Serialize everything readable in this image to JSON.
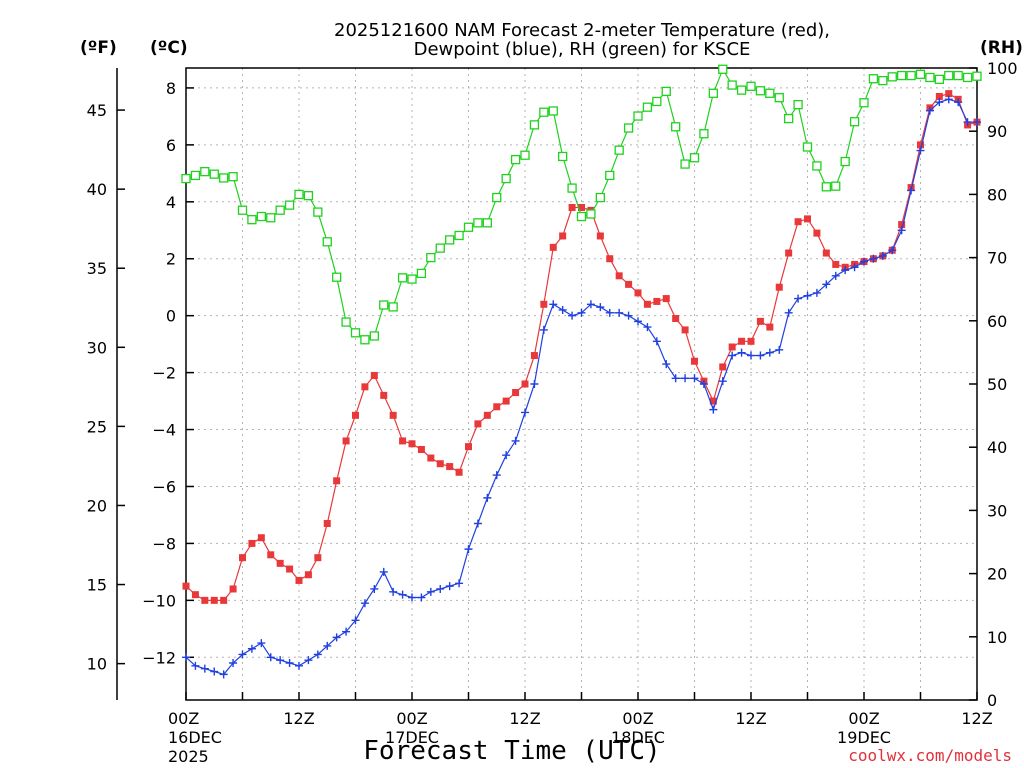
{
  "chart_data": {
    "type": "line",
    "title": [
      "2025121600 NAM Forecast 2-meter Temperature (red),",
      "Dewpoint (blue), RH (green) for KSCE"
    ],
    "xlabel": "Forecast Time (UTC)",
    "x_ticks": [
      {
        "hour": 0,
        "lines": [
          "00Z",
          "16DEC",
          "2025"
        ]
      },
      {
        "hour": 12,
        "lines": [
          "12Z"
        ]
      },
      {
        "hour": 24,
        "lines": [
          "00Z",
          "17DEC"
        ]
      },
      {
        "hour": 36,
        "lines": [
          "12Z"
        ]
      },
      {
        "hour": 48,
        "lines": [
          "00Z",
          "18DEC"
        ]
      },
      {
        "hour": 60,
        "lines": [
          "12Z"
        ]
      },
      {
        "hour": 72,
        "lines": [
          "00Z",
          "19DEC"
        ]
      },
      {
        "hour": 84,
        "lines": [
          "12Z"
        ]
      }
    ],
    "x_range": [
      0,
      84
    ],
    "left_axis_c": {
      "unit": "(ºC)",
      "range": [
        -13.5,
        8.7
      ],
      "ticks": [
        -12,
        -10,
        -8,
        -6,
        -4,
        -2,
        0,
        2,
        4,
        6,
        8
      ]
    },
    "left_axis_f": {
      "unit": "(ºF)",
      "ticks": [
        10,
        15,
        20,
        25,
        30,
        35,
        40,
        45
      ]
    },
    "right_axis_rh": {
      "unit": "(RH)",
      "range": [
        0,
        100
      ],
      "ticks": [
        0,
        10,
        20,
        30,
        40,
        50,
        60,
        70,
        80,
        90,
        100
      ]
    },
    "grid": true,
    "series": [
      {
        "name": "Temperature",
        "color": "#e8383a",
        "marker": "filled-square",
        "x": [
          0,
          1,
          2,
          3,
          4,
          5,
          6,
          7,
          8,
          9,
          10,
          11,
          12,
          13,
          14,
          15,
          16,
          17,
          18,
          19,
          20,
          21,
          22,
          23,
          24,
          25,
          26,
          27,
          28,
          29,
          30,
          31,
          32,
          33,
          34,
          35,
          36,
          37,
          38,
          39,
          40,
          41,
          42,
          43,
          44,
          45,
          46,
          47,
          48,
          49,
          50,
          51,
          52,
          53,
          54,
          55,
          56,
          57,
          58,
          59,
          60,
          61,
          62,
          63,
          64,
          65,
          66,
          67,
          68,
          69,
          70,
          71,
          72,
          73,
          74,
          75,
          76,
          77,
          78,
          79,
          80,
          81,
          82,
          83,
          84
        ],
        "values": [
          -9.5,
          -9.8,
          -10.0,
          -10.0,
          -10.0,
          -9.6,
          -8.5,
          -8.0,
          -7.8,
          -8.4,
          -8.7,
          -8.9,
          -9.3,
          -9.1,
          -8.5,
          -7.3,
          -5.8,
          -4.4,
          -3.5,
          -2.5,
          -2.1,
          -2.8,
          -3.5,
          -4.4,
          -4.5,
          -4.7,
          -5.0,
          -5.2,
          -5.3,
          -5.5,
          -4.6,
          -3.8,
          -3.5,
          -3.2,
          -3.0,
          -2.7,
          -2.4,
          -1.4,
          0.4,
          2.4,
          2.8,
          3.8,
          3.8,
          3.7,
          2.8,
          2.0,
          1.4,
          1.1,
          0.8,
          0.4,
          0.5,
          0.6,
          -0.1,
          -0.5,
          -1.6,
          -2.3,
          -3.0,
          -1.8,
          -1.1,
          -0.9,
          -0.9,
          -0.2,
          -0.4,
          1.0,
          2.2,
          3.3,
          3.4,
          2.9,
          2.2,
          1.8,
          1.7,
          1.8,
          1.9,
          2.0,
          2.1,
          2.3,
          3.2,
          4.5,
          6.0,
          7.3,
          7.7,
          7.8,
          7.6,
          6.7,
          6.8
        ]
      },
      {
        "name": "Dewpoint",
        "color": "#2040e0",
        "marker": "plus",
        "x": [
          0,
          1,
          2,
          3,
          4,
          5,
          6,
          7,
          8,
          9,
          10,
          11,
          12,
          13,
          14,
          15,
          16,
          17,
          18,
          19,
          20,
          21,
          22,
          23,
          24,
          25,
          26,
          27,
          28,
          29,
          30,
          31,
          32,
          33,
          34,
          35,
          36,
          37,
          38,
          39,
          40,
          41,
          42,
          43,
          44,
          45,
          46,
          47,
          48,
          49,
          50,
          51,
          52,
          53,
          54,
          55,
          56,
          57,
          58,
          59,
          60,
          61,
          62,
          63,
          64,
          65,
          66,
          67,
          68,
          69,
          70,
          71,
          72,
          73,
          74,
          75,
          76,
          77,
          78,
          79,
          80,
          81,
          82,
          83,
          84
        ],
        "values": [
          -12.0,
          -12.3,
          -12.4,
          -12.5,
          -12.6,
          -12.2,
          -11.9,
          -11.7,
          -11.5,
          -12.0,
          -12.1,
          -12.2,
          -12.3,
          -12.1,
          -11.9,
          -11.6,
          -11.3,
          -11.1,
          -10.7,
          -10.1,
          -9.6,
          -9.0,
          -9.7,
          -9.8,
          -9.9,
          -9.9,
          -9.7,
          -9.6,
          -9.5,
          -9.4,
          -8.2,
          -7.3,
          -6.4,
          -5.6,
          -4.9,
          -4.4,
          -3.4,
          -2.4,
          -0.5,
          0.4,
          0.2,
          0.0,
          0.1,
          0.4,
          0.3,
          0.1,
          0.1,
          0.0,
          -0.2,
          -0.4,
          -0.9,
          -1.7,
          -2.2,
          -2.2,
          -2.2,
          -2.4,
          -3.3,
          -2.3,
          -1.4,
          -1.3,
          -1.4,
          -1.4,
          -1.3,
          -1.2,
          0.1,
          0.6,
          0.7,
          0.8,
          1.1,
          1.4,
          1.6,
          1.7,
          1.9,
          2.0,
          2.1,
          2.3,
          3.0,
          4.4,
          5.8,
          7.2,
          7.5,
          7.6,
          7.5,
          6.8,
          6.8
        ]
      },
      {
        "name": "RH",
        "color": "#1ed21e",
        "marker": "open-square",
        "x": [
          0,
          1,
          2,
          3,
          4,
          5,
          6,
          7,
          8,
          9,
          10,
          11,
          12,
          13,
          14,
          15,
          16,
          17,
          18,
          19,
          20,
          21,
          22,
          23,
          24,
          25,
          26,
          27,
          28,
          29,
          30,
          31,
          32,
          33,
          34,
          35,
          36,
          37,
          38,
          39,
          40,
          41,
          42,
          43,
          44,
          45,
          46,
          47,
          48,
          49,
          50,
          51,
          52,
          53,
          54,
          55,
          56,
          57,
          58,
          59,
          60,
          61,
          62,
          63,
          64,
          65,
          66,
          67,
          68,
          69,
          70,
          71,
          72,
          73,
          74,
          75,
          76,
          77,
          78,
          79,
          80,
          81,
          82,
          83,
          84
        ],
        "values": [
          82.5,
          83.0,
          83.6,
          83.2,
          82.6,
          82.8,
          77.5,
          76.0,
          76.5,
          76.3,
          77.5,
          78.3,
          80.0,
          79.8,
          77.2,
          72.5,
          66.9,
          59.8,
          58.1,
          57.0,
          57.6,
          62.5,
          62.2,
          66.8,
          66.6,
          67.5,
          70.0,
          71.5,
          72.8,
          73.5,
          74.8,
          75.5,
          75.5,
          79.5,
          82.5,
          85.5,
          86.2,
          91.0,
          93.0,
          93.2,
          86.0,
          81.0,
          76.5,
          76.9,
          79.5,
          83.0,
          87.0,
          90.5,
          92.4,
          93.8,
          94.7,
          96.3,
          90.7,
          84.8,
          85.8,
          89.6,
          96.0,
          99.8,
          97.3,
          96.5,
          97.1,
          96.4,
          96.0,
          95.3,
          92.0,
          94.2,
          87.5,
          84.5,
          81.2,
          81.3,
          85.2,
          91.5,
          94.5,
          98.3,
          98.0,
          98.6,
          98.8,
          98.8,
          99.0,
          98.5,
          98.2,
          98.8,
          98.8,
          98.5,
          98.7
        ]
      }
    ]
  },
  "credit": "coolwx.com/models"
}
